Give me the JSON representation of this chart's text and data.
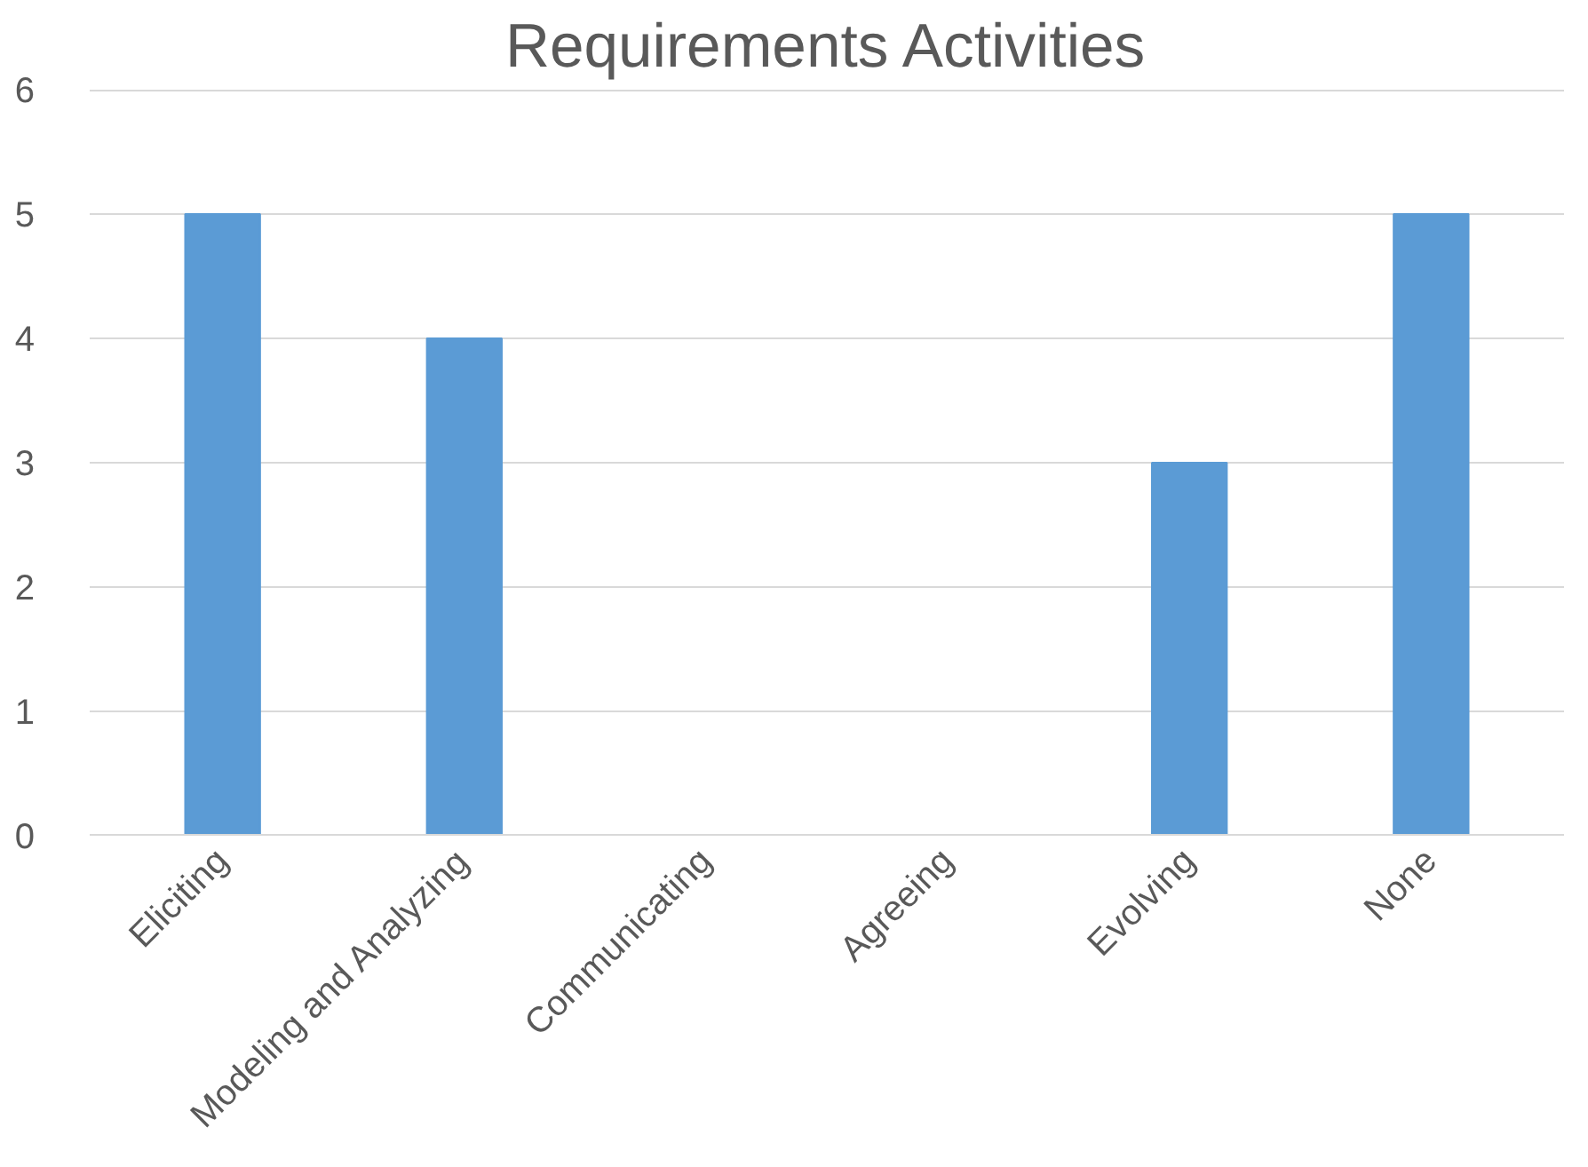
{
  "chart_data": {
    "type": "bar",
    "title": "Requirements Activities",
    "categories": [
      "Eliciting",
      "Modeling and Analyzing",
      "Communicating",
      "Agreeing",
      "Evolving",
      "None"
    ],
    "values": [
      5,
      4,
      0,
      0,
      3,
      5
    ],
    "color": "#5b9bd5",
    "ylim": [
      0,
      6
    ],
    "yticks": [
      0,
      1,
      2,
      3,
      4,
      5,
      6
    ],
    "grid": "y"
  }
}
